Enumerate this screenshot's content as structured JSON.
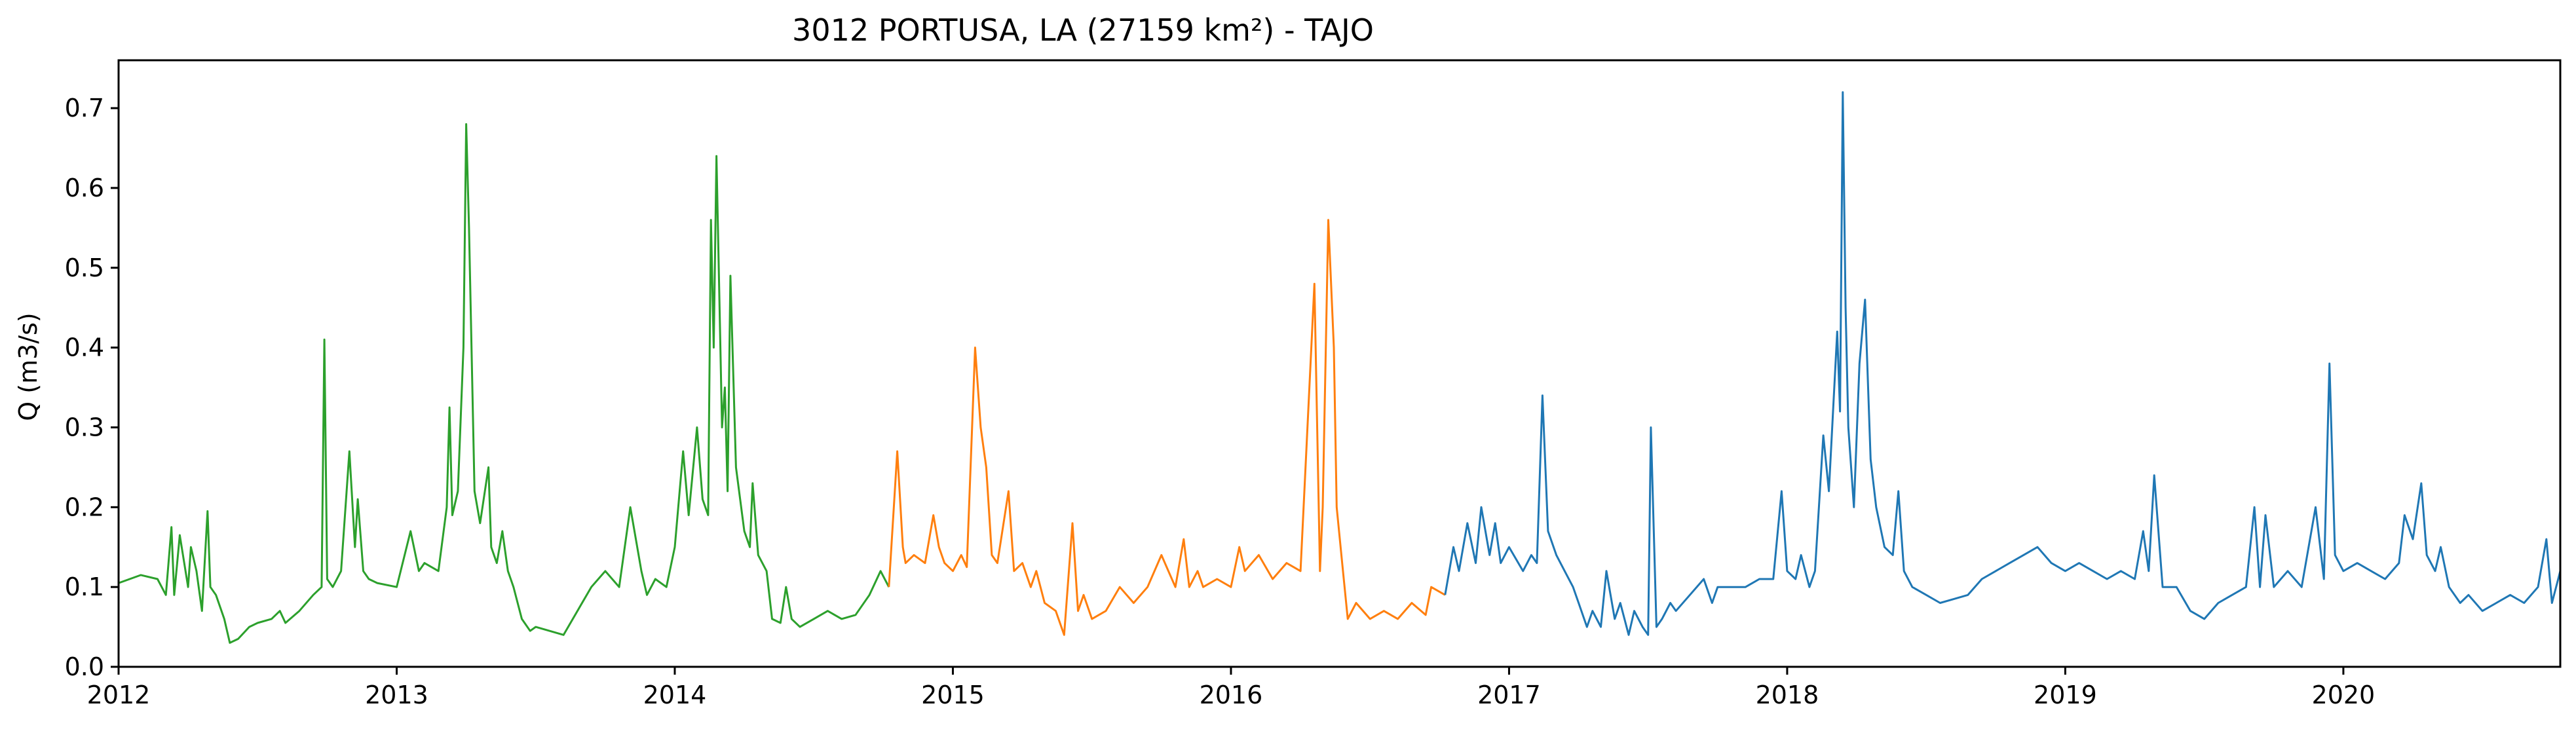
{
  "chart_data": {
    "type": "line",
    "title": "3012 PORTUSA, LA (27159 km²) - TAJO",
    "xlabel": "",
    "ylabel": "Q (m3/s)",
    "xlim": [
      2012.0,
      2020.78
    ],
    "ylim": [
      0.0,
      0.76
    ],
    "x_ticks": [
      2012,
      2013,
      2014,
      2015,
      2016,
      2017,
      2018,
      2019,
      2020
    ],
    "x_tick_labels": [
      "2012",
      "2013",
      "2014",
      "2015",
      "2016",
      "2017",
      "2018",
      "2019",
      "2020"
    ],
    "y_ticks": [
      0.0,
      0.1,
      0.2,
      0.3,
      0.4,
      0.5,
      0.6,
      0.7
    ],
    "y_tick_labels": [
      "0.0",
      "0.1",
      "0.2",
      "0.3",
      "0.4",
      "0.5",
      "0.6",
      "0.7"
    ],
    "grid": false,
    "legend": "none",
    "series": [
      {
        "color": "#2ca02c",
        "x": [
          2012.0,
          2012.08,
          2012.14,
          2012.17,
          2012.19,
          2012.2,
          2012.22,
          2012.25,
          2012.26,
          2012.28,
          2012.3,
          2012.32,
          2012.33,
          2012.35,
          2012.38,
          2012.4,
          2012.43,
          2012.47,
          2012.5,
          2012.55,
          2012.58,
          2012.6,
          2012.65,
          2012.7,
          2012.73,
          2012.74,
          2012.75,
          2012.77,
          2012.8,
          2012.83,
          2012.85,
          2012.86,
          2012.88,
          2012.9,
          2012.93,
          2013.0,
          2013.05,
          2013.08,
          2013.1,
          2013.15,
          2013.18,
          2013.19,
          2013.2,
          2013.22,
          2013.24,
          2013.25,
          2013.26,
          2013.28,
          2013.3,
          2013.33,
          2013.34,
          2013.36,
          2013.38,
          2013.4,
          2013.42,
          2013.45,
          2013.48,
          2013.5,
          2013.55,
          2013.6,
          2013.65,
          2013.7,
          2013.75,
          2013.8,
          2013.84,
          2013.88,
          2013.9,
          2013.93,
          2013.97,
          2014.0,
          2014.03,
          2014.05,
          2014.08,
          2014.1,
          2014.12,
          2014.13,
          2014.14,
          2014.15,
          2014.17,
          2014.18,
          2014.19,
          2014.2,
          2014.22,
          2014.25,
          2014.27,
          2014.28,
          2014.3,
          2014.33,
          2014.35,
          2014.38,
          2014.4,
          2014.42,
          2014.45,
          2014.5,
          2014.55,
          2014.6,
          2014.65,
          2014.7,
          2014.74,
          2014.77
        ],
        "y": [
          0.105,
          0.115,
          0.11,
          0.09,
          0.175,
          0.09,
          0.165,
          0.1,
          0.15,
          0.12,
          0.07,
          0.195,
          0.1,
          0.09,
          0.06,
          0.03,
          0.035,
          0.05,
          0.055,
          0.06,
          0.07,
          0.055,
          0.07,
          0.09,
          0.1,
          0.41,
          0.11,
          0.1,
          0.12,
          0.27,
          0.15,
          0.21,
          0.12,
          0.11,
          0.105,
          0.1,
          0.17,
          0.12,
          0.13,
          0.12,
          0.2,
          0.325,
          0.19,
          0.22,
          0.4,
          0.68,
          0.55,
          0.22,
          0.18,
          0.25,
          0.15,
          0.13,
          0.17,
          0.12,
          0.1,
          0.06,
          0.045,
          0.05,
          0.045,
          0.04,
          0.07,
          0.1,
          0.12,
          0.1,
          0.2,
          0.12,
          0.09,
          0.11,
          0.1,
          0.15,
          0.27,
          0.19,
          0.3,
          0.21,
          0.19,
          0.56,
          0.4,
          0.64,
          0.3,
          0.35,
          0.22,
          0.49,
          0.25,
          0.17,
          0.15,
          0.23,
          0.14,
          0.12,
          0.06,
          0.055,
          0.1,
          0.06,
          0.05,
          0.06,
          0.07,
          0.06,
          0.065,
          0.09,
          0.12,
          0.1
        ]
      },
      {
        "color": "#ff7f0e",
        "x": [
          2014.77,
          2014.8,
          2014.82,
          2014.83,
          2014.86,
          2014.9,
          2014.93,
          2014.95,
          2014.97,
          2015.0,
          2015.03,
          2015.05,
          2015.08,
          2015.1,
          2015.12,
          2015.14,
          2015.16,
          2015.2,
          2015.22,
          2015.25,
          2015.28,
          2015.3,
          2015.33,
          2015.37,
          2015.4,
          2015.43,
          2015.45,
          2015.47,
          2015.5,
          2015.55,
          2015.6,
          2015.65,
          2015.7,
          2015.75,
          2015.8,
          2015.83,
          2015.85,
          2015.88,
          2015.9,
          2015.95,
          2016.0,
          2016.03,
          2016.05,
          2016.1,
          2016.15,
          2016.2,
          2016.25,
          2016.3,
          2016.32,
          2016.33,
          2016.35,
          2016.37,
          2016.38,
          2016.4,
          2016.42,
          2016.45,
          2016.5,
          2016.55,
          2016.6,
          2016.65,
          2016.7,
          2016.72,
          2016.77
        ],
        "y": [
          0.1,
          0.27,
          0.15,
          0.13,
          0.14,
          0.13,
          0.19,
          0.15,
          0.13,
          0.12,
          0.14,
          0.125,
          0.4,
          0.3,
          0.25,
          0.14,
          0.13,
          0.22,
          0.12,
          0.13,
          0.1,
          0.12,
          0.08,
          0.07,
          0.04,
          0.18,
          0.07,
          0.09,
          0.06,
          0.07,
          0.1,
          0.08,
          0.1,
          0.14,
          0.1,
          0.16,
          0.1,
          0.12,
          0.1,
          0.11,
          0.1,
          0.15,
          0.12,
          0.14,
          0.11,
          0.13,
          0.12,
          0.48,
          0.12,
          0.2,
          0.56,
          0.4,
          0.2,
          0.13,
          0.06,
          0.08,
          0.06,
          0.07,
          0.06,
          0.08,
          0.065,
          0.1,
          0.09
        ]
      },
      {
        "color": "#1f77b4",
        "x": [
          2016.77,
          2016.8,
          2016.82,
          2016.85,
          2016.88,
          2016.9,
          2016.93,
          2016.95,
          2016.97,
          2017.0,
          2017.05,
          2017.08,
          2017.1,
          2017.12,
          2017.14,
          2017.17,
          2017.2,
          2017.23,
          2017.25,
          2017.28,
          2017.3,
          2017.33,
          2017.35,
          2017.38,
          2017.4,
          2017.43,
          2017.45,
          2017.48,
          2017.5,
          2017.51,
          2017.53,
          2017.55,
          2017.58,
          2017.6,
          2017.65,
          2017.7,
          2017.73,
          2017.75,
          2017.8,
          2017.85,
          2017.9,
          2017.95,
          2017.98,
          2018.0,
          2018.03,
          2018.05,
          2018.08,
          2018.1,
          2018.13,
          2018.15,
          2018.18,
          2018.19,
          2018.2,
          2018.21,
          2018.22,
          2018.24,
          2018.26,
          2018.28,
          2018.3,
          2018.32,
          2018.35,
          2018.38,
          2018.4,
          2018.42,
          2018.45,
          2018.5,
          2018.55,
          2018.6,
          2018.65,
          2018.7,
          2018.75,
          2018.8,
          2018.85,
          2018.9,
          2018.95,
          2019.0,
          2019.05,
          2019.1,
          2019.15,
          2019.2,
          2019.25,
          2019.28,
          2019.3,
          2019.32,
          2019.35,
          2019.4,
          2019.45,
          2019.5,
          2019.55,
          2019.6,
          2019.65,
          2019.68,
          2019.7,
          2019.72,
          2019.75,
          2019.8,
          2019.85,
          2019.9,
          2019.93,
          2019.95,
          2019.97,
          2020.0,
          2020.05,
          2020.1,
          2020.15,
          2020.2,
          2020.22,
          2020.25,
          2020.28,
          2020.3,
          2020.33,
          2020.35,
          2020.38,
          2020.42,
          2020.45,
          2020.5,
          2020.55,
          2020.6,
          2020.65,
          2020.7,
          2020.73,
          2020.75,
          2020.78
        ],
        "y": [
          0.09,
          0.15,
          0.12,
          0.18,
          0.13,
          0.2,
          0.14,
          0.18,
          0.13,
          0.15,
          0.12,
          0.14,
          0.13,
          0.34,
          0.17,
          0.14,
          0.12,
          0.1,
          0.08,
          0.05,
          0.07,
          0.05,
          0.12,
          0.06,
          0.08,
          0.04,
          0.07,
          0.05,
          0.04,
          0.3,
          0.05,
          0.06,
          0.08,
          0.07,
          0.09,
          0.11,
          0.08,
          0.1,
          0.1,
          0.1,
          0.11,
          0.11,
          0.22,
          0.12,
          0.11,
          0.14,
          0.1,
          0.12,
          0.29,
          0.22,
          0.42,
          0.32,
          0.72,
          0.45,
          0.3,
          0.2,
          0.38,
          0.46,
          0.26,
          0.2,
          0.15,
          0.14,
          0.22,
          0.12,
          0.1,
          0.09,
          0.08,
          0.085,
          0.09,
          0.11,
          0.12,
          0.13,
          0.14,
          0.15,
          0.13,
          0.12,
          0.13,
          0.12,
          0.11,
          0.12,
          0.11,
          0.17,
          0.12,
          0.24,
          0.1,
          0.1,
          0.07,
          0.06,
          0.08,
          0.09,
          0.1,
          0.2,
          0.1,
          0.19,
          0.1,
          0.12,
          0.1,
          0.2,
          0.11,
          0.38,
          0.14,
          0.12,
          0.13,
          0.12,
          0.11,
          0.13,
          0.19,
          0.16,
          0.23,
          0.14,
          0.12,
          0.15,
          0.1,
          0.08,
          0.09,
          0.07,
          0.08,
          0.09,
          0.08,
          0.1,
          0.16,
          0.08,
          0.12
        ]
      }
    ]
  }
}
